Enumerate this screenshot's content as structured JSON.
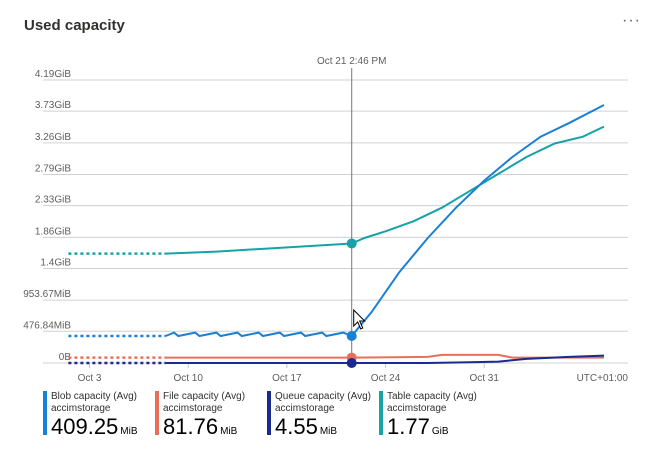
{
  "title": "Used capacity",
  "more_label": "···",
  "legend": [
    {
      "name": "Blob capacity (Avg)",
      "resource": "accimstorage",
      "value": "409.25",
      "unit": "MiB",
      "color": "#1a80d6"
    },
    {
      "name": "File capacity (Avg)",
      "resource": "accimstorage",
      "value": "81.76",
      "unit": "MiB",
      "color": "#e8705a"
    },
    {
      "name": "Queue capacity (Avg)",
      "resource": "accimstorage",
      "value": "4.55",
      "unit": "MiB",
      "color": "#1b2a8f"
    },
    {
      "name": "Table capacity (Avg)",
      "resource": "accimstorage",
      "value": "1.77",
      "unit": "GiB",
      "color": "#17a2a6"
    }
  ],
  "chart_data": {
    "type": "line",
    "title": "Used capacity",
    "y_unit": "GiB",
    "ylim": [
      0,
      4.19
    ],
    "yticks": [
      {
        "v": 4.19,
        "label": "4.19GiB"
      },
      {
        "v": 3.73,
        "label": "3.73GiB"
      },
      {
        "v": 3.26,
        "label": "3.26GiB"
      },
      {
        "v": 2.79,
        "label": "2.79GiB"
      },
      {
        "v": 2.33,
        "label": "2.33GiB"
      },
      {
        "v": 1.86,
        "label": "1.86GiB"
      },
      {
        "v": 1.4,
        "label": "1.4GiB"
      },
      {
        "v": 0.93,
        "label": "953.67MiB"
      },
      {
        "v": 0.47,
        "label": "476.84MiB"
      },
      {
        "v": 0,
        "label": "0B"
      }
    ],
    "x_unit": "day of October",
    "xlim": [
      -0.3,
      41.2
    ],
    "xticks": [
      {
        "v": 3,
        "label": "Oct 3"
      },
      {
        "v": 10,
        "label": "Oct 10"
      },
      {
        "v": 17,
        "label": "Oct 17"
      },
      {
        "v": 24,
        "label": "Oct 24"
      },
      {
        "v": 31,
        "label": "Oct 31"
      }
    ],
    "timezone": "UTC+01:00",
    "cursor": {
      "x": 21.6,
      "label": "Oct 21 2:46 PM"
    },
    "dotted_until": 8.4,
    "series": [
      {
        "name": "Table capacity (Avg)",
        "color": "#17a2a6",
        "points": [
          [
            1.5,
            1.62
          ],
          [
            8.4,
            1.62
          ],
          [
            12,
            1.65
          ],
          [
            16,
            1.7
          ],
          [
            21.6,
            1.77
          ],
          [
            22.5,
            1.85
          ],
          [
            24,
            1.95
          ],
          [
            26,
            2.1
          ],
          [
            28,
            2.3
          ],
          [
            30,
            2.55
          ],
          [
            32,
            2.8
          ],
          [
            34,
            3.05
          ],
          [
            36,
            3.25
          ],
          [
            38,
            3.35
          ],
          [
            39.5,
            3.5
          ]
        ]
      },
      {
        "name": "Blob capacity (Avg)",
        "color": "#1a80d6",
        "points": [
          [
            1.5,
            0.4
          ],
          [
            8.4,
            0.4
          ],
          [
            9,
            0.45
          ],
          [
            9.3,
            0.4
          ],
          [
            10.5,
            0.45
          ],
          [
            10.8,
            0.4
          ],
          [
            12,
            0.45
          ],
          [
            12.3,
            0.4
          ],
          [
            13.5,
            0.45
          ],
          [
            13.8,
            0.4
          ],
          [
            15,
            0.45
          ],
          [
            15.3,
            0.4
          ],
          [
            16.5,
            0.45
          ],
          [
            16.8,
            0.4
          ],
          [
            18,
            0.45
          ],
          [
            18.3,
            0.4
          ],
          [
            19.5,
            0.45
          ],
          [
            19.8,
            0.4
          ],
          [
            21,
            0.45
          ],
          [
            21.6,
            0.4
          ],
          [
            23,
            0.75
          ],
          [
            25,
            1.35
          ],
          [
            27,
            1.85
          ],
          [
            29,
            2.3
          ],
          [
            31,
            2.7
          ],
          [
            33,
            3.05
          ],
          [
            35,
            3.35
          ],
          [
            37,
            3.55
          ],
          [
            39.5,
            3.82
          ]
        ]
      },
      {
        "name": "File capacity (Avg)",
        "color": "#e8705a",
        "points": [
          [
            1.5,
            0.08
          ],
          [
            8.4,
            0.08
          ],
          [
            21.6,
            0.08
          ],
          [
            27,
            0.09
          ],
          [
            28,
            0.12
          ],
          [
            32,
            0.12
          ],
          [
            33,
            0.08
          ],
          [
            39.5,
            0.08
          ]
        ]
      },
      {
        "name": "Queue capacity (Avg)",
        "color": "#1b2a8f",
        "points": [
          [
            1.5,
            0
          ],
          [
            8.4,
            0
          ],
          [
            21.6,
            0
          ],
          [
            27,
            0
          ],
          [
            30,
            0.01
          ],
          [
            32,
            0.02
          ],
          [
            34,
            0.06
          ],
          [
            37,
            0.09
          ],
          [
            39.5,
            0.11
          ]
        ]
      }
    ]
  }
}
